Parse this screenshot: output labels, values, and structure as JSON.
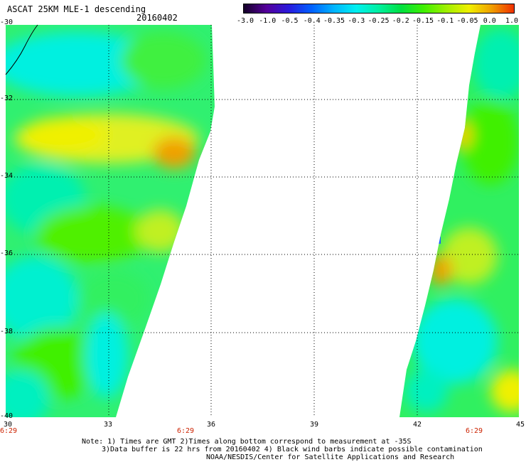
{
  "header": {
    "title": "ASCAT 25KM MLE-1 descending",
    "date": "20160402"
  },
  "colorbar": {
    "labels": [
      "-3.0",
      "-1.0",
      "-0.5",
      "-0.4",
      "-0.35",
      "-0.3",
      "-0.25",
      "-0.2",
      "-0.15",
      "-0.1",
      "-0.05",
      "0.0",
      "1.0"
    ],
    "colors": [
      "#140028",
      "#55009a",
      "#2a1adc",
      "#0060ff",
      "#00b4ff",
      "#00f0f0",
      "#00f0a0",
      "#00e040",
      "#40f000",
      "#a0f000",
      "#f0f000",
      "#f0a000",
      "#f03000"
    ]
  },
  "axes": {
    "lat_labels": [
      "-30",
      "-32",
      "-34",
      "-36",
      "-38",
      "-40"
    ],
    "lon_labels": [
      "30",
      "33",
      "36",
      "39",
      "42",
      "45"
    ]
  },
  "times": [
    "6:29",
    "6:29",
    "6:29"
  ],
  "notes": [
    "Note: 1) Times are GMT 2)Times along bottom correspond to measurement at -35S",
    "3)Data buffer is 22 hrs from 20160402 4) Black wind barbs indicate possible contamination",
    "NOAA/NESDIS/Center for Satellite Applications and Research"
  ]
}
